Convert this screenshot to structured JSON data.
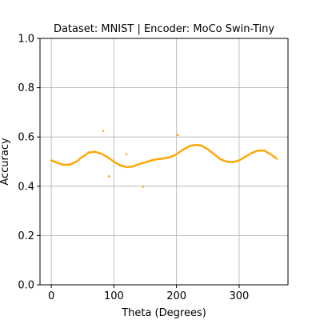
{
  "chart_data": {
    "type": "scatter",
    "title": "Dataset: MNIST | Encoder: MoCo Swin-Tiny",
    "xlabel": "Theta (Degrees)",
    "ylabel": "Accuracy",
    "xlim": [
      -18,
      378
    ],
    "ylim": [
      0.0,
      1.0
    ],
    "xticks": [
      0,
      100,
      200,
      300
    ],
    "yticks": [
      0.0,
      0.2,
      0.4,
      0.6,
      0.8,
      1.0
    ],
    "xtick_labels": [
      "0",
      "100",
      "200",
      "300"
    ],
    "ytick_labels": [
      "0.0",
      "0.2",
      "0.4",
      "0.6",
      "0.8",
      "1.0"
    ],
    "grid": true,
    "point_color": "#FFA500",
    "curve": [
      [
        0,
        0.505
      ],
      [
        10,
        0.495
      ],
      [
        20,
        0.487
      ],
      [
        30,
        0.488
      ],
      [
        40,
        0.5
      ],
      [
        50,
        0.52
      ],
      [
        60,
        0.537
      ],
      [
        70,
        0.54
      ],
      [
        80,
        0.532
      ],
      [
        90,
        0.518
      ],
      [
        100,
        0.5
      ],
      [
        110,
        0.485
      ],
      [
        120,
        0.478
      ],
      [
        130,
        0.48
      ],
      [
        140,
        0.49
      ],
      [
        150,
        0.497
      ],
      [
        160,
        0.505
      ],
      [
        170,
        0.51
      ],
      [
        180,
        0.513
      ],
      [
        190,
        0.518
      ],
      [
        200,
        0.53
      ],
      [
        210,
        0.548
      ],
      [
        220,
        0.562
      ],
      [
        230,
        0.568
      ],
      [
        240,
        0.565
      ],
      [
        250,
        0.55
      ],
      [
        260,
        0.53
      ],
      [
        270,
        0.51
      ],
      [
        280,
        0.5
      ],
      [
        290,
        0.498
      ],
      [
        300,
        0.505
      ],
      [
        310,
        0.52
      ],
      [
        320,
        0.535
      ],
      [
        330,
        0.545
      ],
      [
        340,
        0.545
      ],
      [
        350,
        0.53
      ],
      [
        360,
        0.512
      ]
    ],
    "x_step": 2,
    "outliers": [
      {
        "x": 83,
        "y": 0.625
      },
      {
        "x": 92,
        "y": 0.44
      },
      {
        "x": 120,
        "y": 0.53
      },
      {
        "x": 147,
        "y": 0.398
      },
      {
        "x": 202,
        "y": 0.608
      }
    ]
  }
}
